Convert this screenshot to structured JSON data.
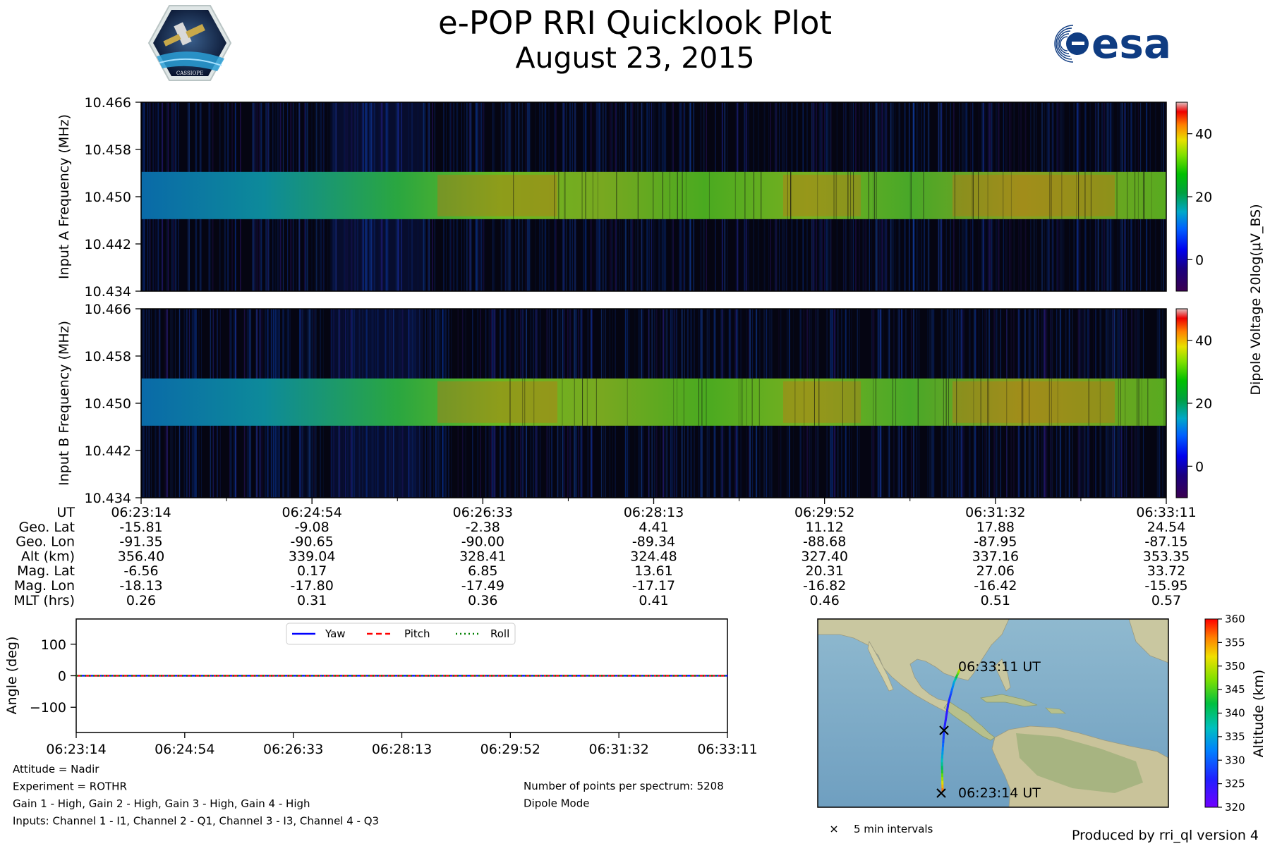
{
  "header": {
    "title": "e-POP RRI Quicklook Plot",
    "date": "August 23, 2015",
    "mission_logo_label": "CASSIOPE",
    "agency_logo_text": "esa"
  },
  "chart_data": [
    {
      "id": "spectrogram-a",
      "type": "heatmap",
      "ylabel": "Input A Frequency (MHz)",
      "yticks": [
        "10.466",
        "10.458",
        "10.450",
        "10.442",
        "10.434"
      ],
      "ylim": [
        10.434,
        10.466
      ],
      "signal_band_mhz": [
        10.4462,
        10.4542
      ],
      "colorbar": {
        "label": "Dipole Voltage 20log(μV_BS)",
        "ticks": [
          "40",
          "20",
          "0"
        ],
        "range": [
          -10,
          50
        ]
      }
    },
    {
      "id": "spectrogram-b",
      "type": "heatmap",
      "ylabel": "Input B Frequency (MHz)",
      "yticks": [
        "10.466",
        "10.458",
        "10.450",
        "10.442",
        "10.434"
      ],
      "ylim": [
        10.434,
        10.466
      ],
      "signal_band_mhz": [
        10.4462,
        10.4542
      ],
      "colorbar": {
        "label": "Dipole Voltage 20log(μV_BS)",
        "ticks": [
          "40",
          "20",
          "0"
        ],
        "range": [
          -10,
          50
        ]
      }
    },
    {
      "id": "attitude",
      "type": "line",
      "ylabel": "Angle (deg)",
      "yticks": [
        "100",
        "0",
        "−100"
      ],
      "ylim": [
        -180,
        180
      ],
      "x": [
        "06:23:14",
        "06:24:54",
        "06:26:33",
        "06:28:13",
        "06:29:52",
        "06:31:32",
        "06:33:11"
      ],
      "series": [
        {
          "name": "Yaw",
          "values": [
            0,
            0,
            0,
            0,
            0,
            0,
            0
          ],
          "color": "#0000ff"
        },
        {
          "name": "Pitch",
          "values": [
            0,
            0,
            0,
            0,
            0,
            0,
            0
          ],
          "color": "#ff0000"
        },
        {
          "name": "Roll",
          "values": [
            0,
            0,
            0,
            0,
            0,
            0,
            0
          ],
          "color": "#008000"
        }
      ],
      "legend": "top-center"
    },
    {
      "id": "ground-track",
      "type": "scatter",
      "start_label": "06:23:14 UT",
      "end_label": "06:33:11 UT",
      "legend_text": "5 min intervals",
      "colorbar": {
        "label": "Altitude (km)",
        "ticks": [
          "360",
          "355",
          "350",
          "345",
          "340",
          "335",
          "330",
          "325",
          "320"
        ],
        "range": [
          320,
          360
        ]
      }
    }
  ],
  "ephemeris": {
    "labels": [
      "UT",
      "Geo. Lat",
      "Geo. Lon",
      "Alt (km)",
      "Mag. Lat",
      "Mag. Lon",
      "MLT (hrs)"
    ],
    "columns": [
      [
        "06:23:14",
        "-15.81",
        "-91.35",
        "356.40",
        "-6.56",
        "-18.13",
        "0.26"
      ],
      [
        "06:24:54",
        "-9.08",
        "-90.65",
        "339.04",
        "0.17",
        "-17.80",
        "0.31"
      ],
      [
        "06:26:33",
        "-2.38",
        "-90.00",
        "328.41",
        "6.85",
        "-17.49",
        "0.36"
      ],
      [
        "06:28:13",
        "4.41",
        "-89.34",
        "324.48",
        "13.61",
        "-17.17",
        "0.41"
      ],
      [
        "06:29:52",
        "11.12",
        "-88.68",
        "327.40",
        "20.31",
        "-16.82",
        "0.46"
      ],
      [
        "06:31:32",
        "17.88",
        "-87.95",
        "337.16",
        "27.06",
        "-16.42",
        "0.51"
      ],
      [
        "06:33:11",
        "24.54",
        "-87.15",
        "353.35",
        "33.72",
        "-15.95",
        "0.57"
      ]
    ]
  },
  "info": {
    "left": [
      "Attitude = Nadir",
      "Experiment = ROTHR",
      "Gain 1 - High, Gain 2 - High, Gain 3 - High, Gain 4 - High",
      "Inputs: Channel 1 - I1, Channel 2 - Q1, Channel 3 - I3, Channel 4 - Q3"
    ],
    "right": [
      "Number of points per spectrum: 5208",
      "Dipole Mode"
    ],
    "footer": "Produced by rri_ql version 4"
  }
}
